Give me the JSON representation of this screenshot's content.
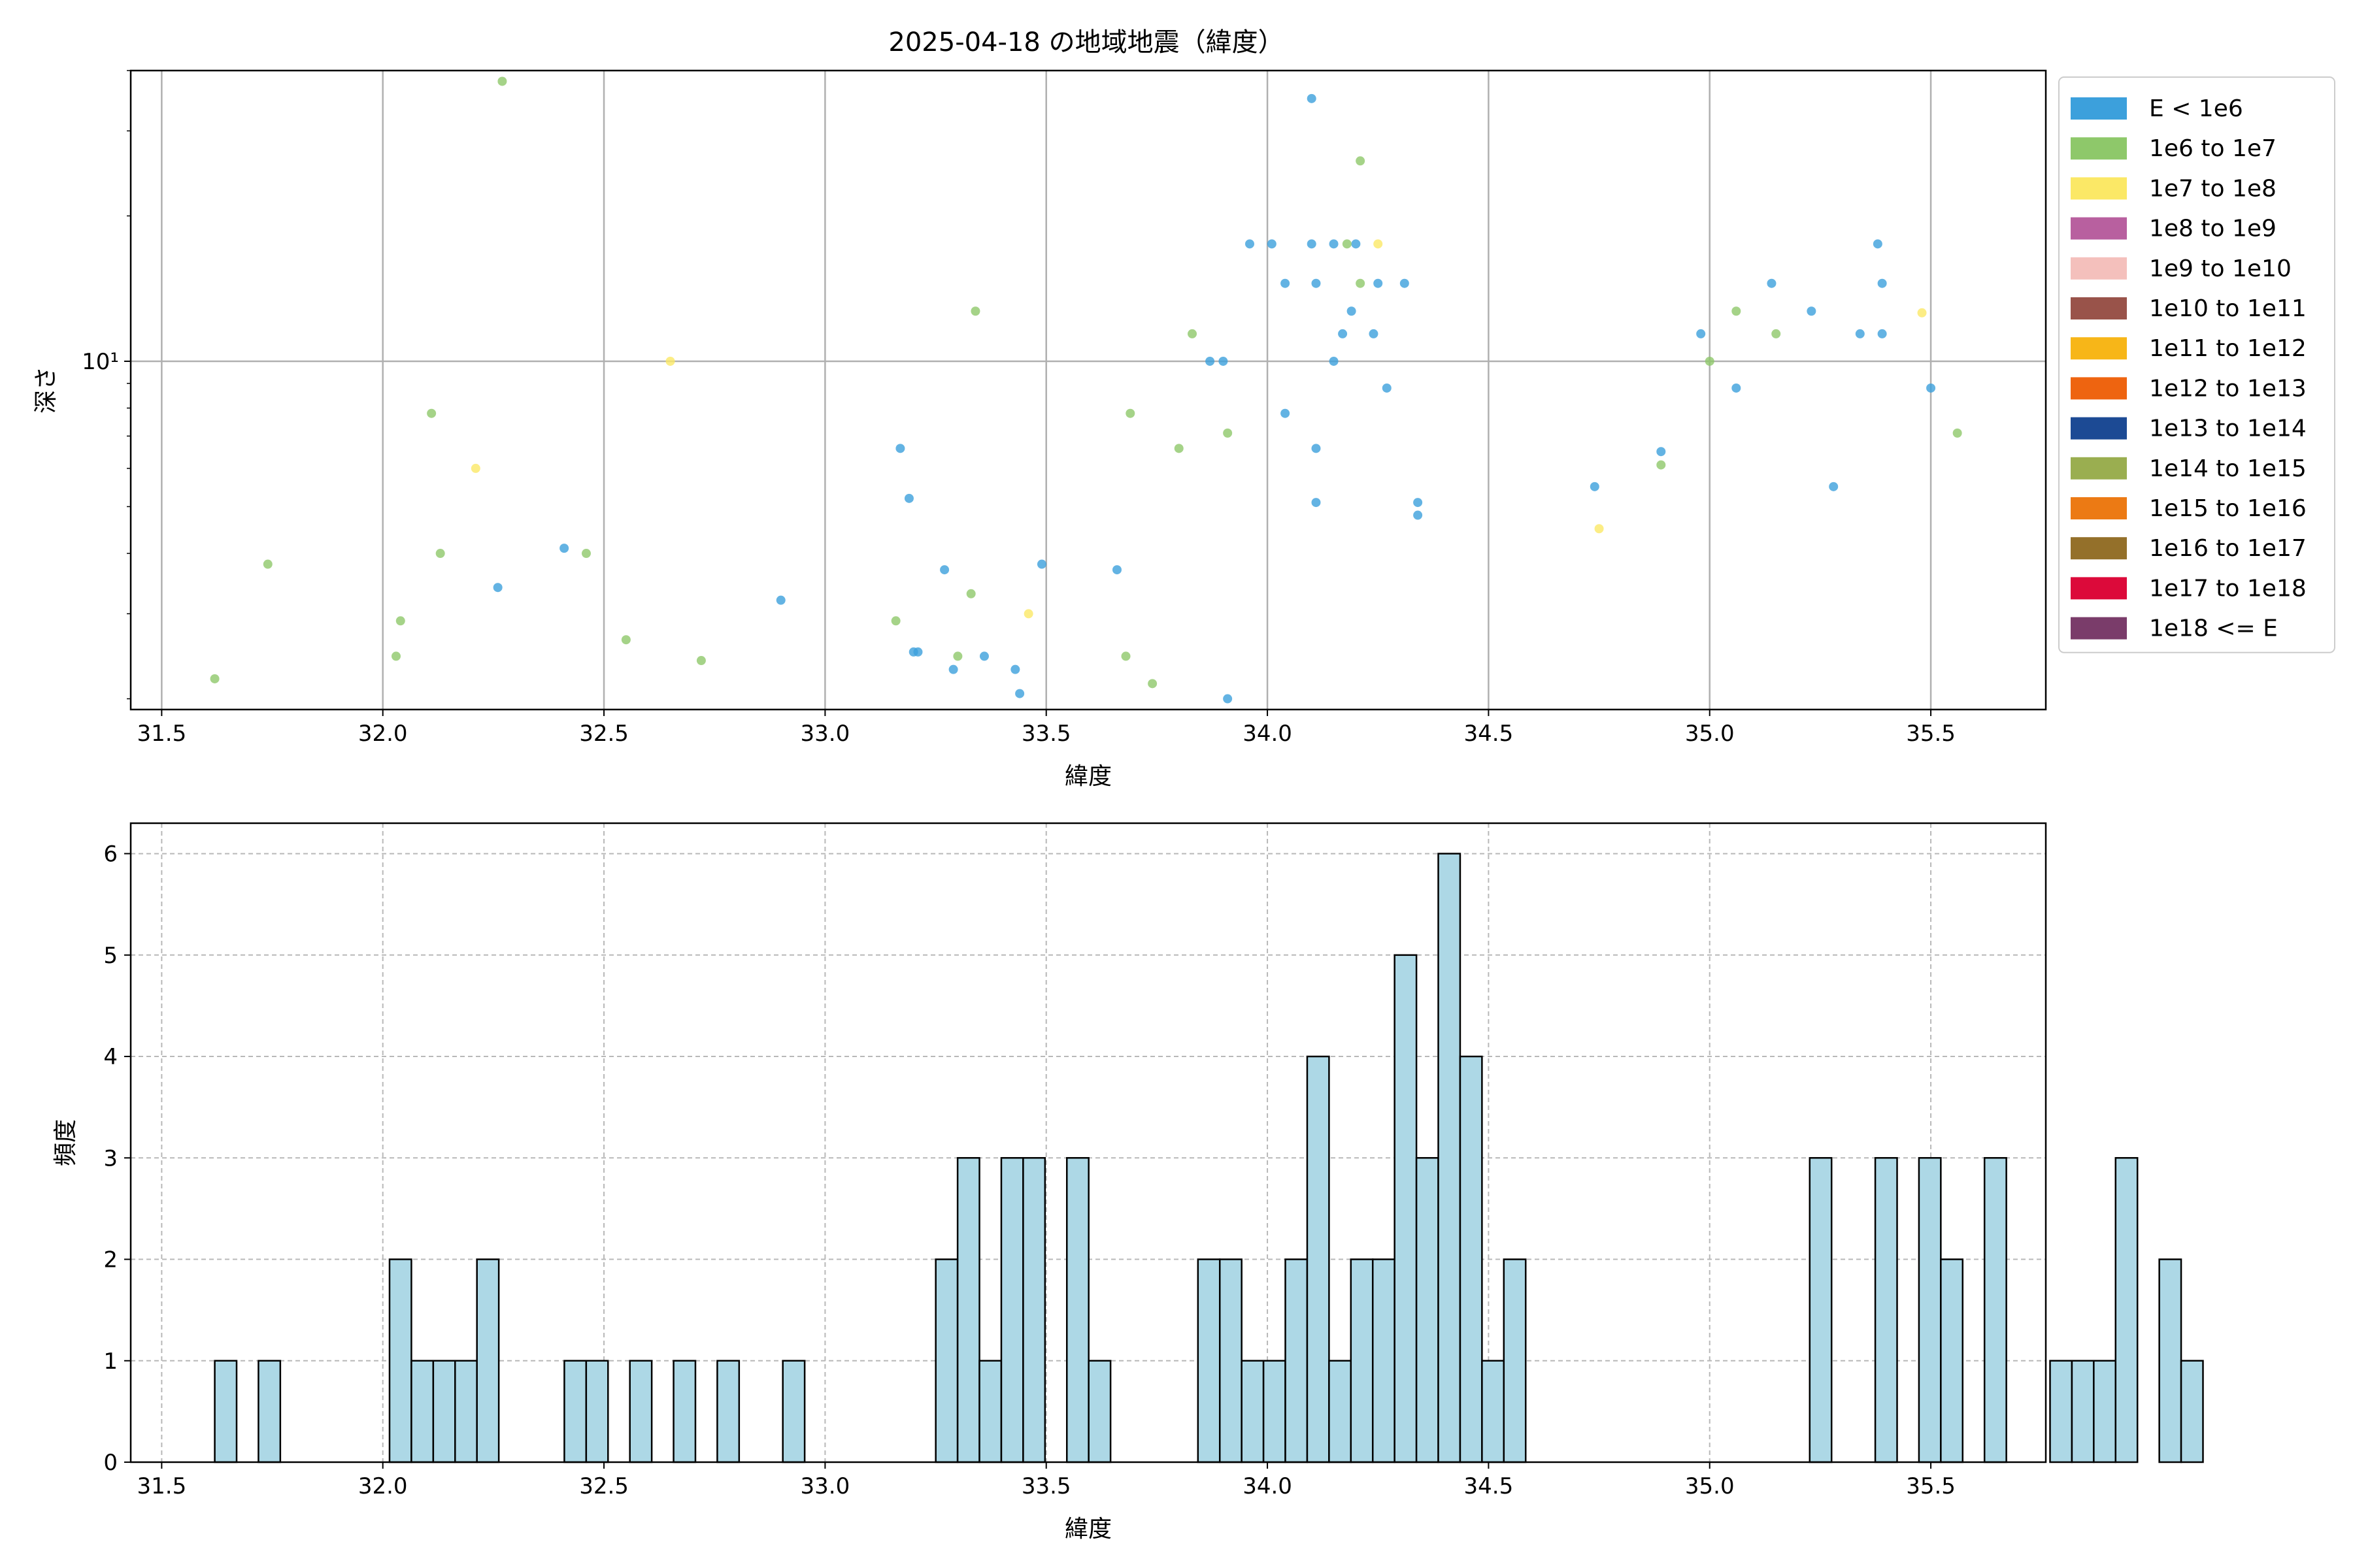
{
  "chart_data": [
    {
      "type": "scatter",
      "title": "2025-04-18 の地域地震（緯度）",
      "xlabel": "緯度",
      "ylabel": "深さ",
      "yscale": "log",
      "xlim": [
        31.43,
        35.76
      ],
      "ylim": [
        1.9,
        40
      ],
      "xticks": [
        31.5,
        32.0,
        32.5,
        33.0,
        33.5,
        34.0,
        34.5,
        35.0,
        35.5
      ],
      "yticks": [
        {
          "value": 10,
          "label": "10¹"
        }
      ],
      "grid": true,
      "legend_position": "outside-right",
      "series": [
        {
          "name": "E < 1e6",
          "color": "#3ca0dc",
          "points": [
            [
              32.26,
              3.4
            ],
            [
              32.41,
              4.1
            ],
            [
              32.9,
              3.2
            ],
            [
              33.17,
              6.6
            ],
            [
              33.19,
              5.2
            ],
            [
              33.2,
              2.5
            ],
            [
              33.21,
              2.5
            ],
            [
              33.27,
              3.7
            ],
            [
              33.29,
              2.3
            ],
            [
              33.36,
              2.45
            ],
            [
              33.43,
              2.3
            ],
            [
              33.44,
              2.05
            ],
            [
              33.49,
              3.8
            ],
            [
              33.66,
              3.7
            ],
            [
              33.87,
              10.0
            ],
            [
              33.9,
              10.0
            ],
            [
              33.91,
              2.0
            ],
            [
              33.96,
              17.5
            ],
            [
              34.01,
              17.5
            ],
            [
              34.04,
              14.5
            ],
            [
              34.04,
              7.8
            ],
            [
              34.1,
              35.0
            ],
            [
              34.1,
              17.5
            ],
            [
              34.11,
              14.5
            ],
            [
              34.11,
              6.6
            ],
            [
              34.11,
              5.1
            ],
            [
              34.15,
              17.5
            ],
            [
              34.15,
              10.0
            ],
            [
              34.17,
              11.4
            ],
            [
              34.19,
              12.7
            ],
            [
              34.2,
              17.5
            ],
            [
              34.24,
              11.4
            ],
            [
              34.25,
              14.5
            ],
            [
              34.27,
              8.8
            ],
            [
              34.31,
              14.5
            ],
            [
              34.34,
              5.1
            ],
            [
              34.34,
              4.8
            ],
            [
              34.74,
              5.5
            ],
            [
              34.89,
              6.5
            ],
            [
              34.98,
              11.4
            ],
            [
              35.06,
              8.8
            ],
            [
              35.14,
              14.5
            ],
            [
              35.23,
              12.7
            ],
            [
              35.28,
              5.5
            ],
            [
              35.34,
              11.4
            ],
            [
              35.38,
              17.5
            ],
            [
              35.39,
              14.5
            ],
            [
              35.39,
              11.4
            ],
            [
              35.5,
              8.8
            ]
          ]
        },
        {
          "name": "1e6 to 1e7",
          "color": "#8ec86a",
          "points": [
            [
              31.62,
              2.2
            ],
            [
              31.74,
              3.8
            ],
            [
              32.03,
              2.45
            ],
            [
              32.04,
              2.9
            ],
            [
              32.11,
              7.8
            ],
            [
              32.13,
              4.0
            ],
            [
              32.27,
              38.0
            ],
            [
              32.46,
              4.0
            ],
            [
              32.55,
              2.65
            ],
            [
              32.72,
              2.4
            ],
            [
              33.16,
              2.9
            ],
            [
              33.3,
              2.45
            ],
            [
              33.33,
              3.3
            ],
            [
              33.34,
              12.7
            ],
            [
              33.68,
              2.45
            ],
            [
              33.69,
              7.8
            ],
            [
              33.74,
              2.15
            ],
            [
              33.8,
              6.6
            ],
            [
              33.83,
              11.4
            ],
            [
              33.91,
              7.1
            ],
            [
              34.18,
              17.5
            ],
            [
              34.21,
              14.5
            ],
            [
              34.21,
              26.0
            ],
            [
              34.89,
              6.1
            ],
            [
              35.0,
              10.0
            ],
            [
              35.06,
              12.7
            ],
            [
              35.15,
              11.4
            ],
            [
              35.56,
              7.1
            ]
          ]
        },
        {
          "name": "1e7 to 1e8",
          "color": "#fbe866",
          "points": [
            [
              32.21,
              6.0
            ],
            [
              32.65,
              10.0
            ],
            [
              33.46,
              3.0
            ],
            [
              34.25,
              17.5
            ],
            [
              34.75,
              4.5
            ],
            [
              35.48,
              12.6
            ]
          ]
        },
        {
          "name": "1e8 to 1e9",
          "color": "#b8609f",
          "points": []
        },
        {
          "name": "1e9 to 1e10",
          "color": "#f4c0bc",
          "points": []
        },
        {
          "name": "1e10 to 1e11",
          "color": "#99534a",
          "points": []
        },
        {
          "name": "1e11 to 1e12",
          "color": "#f7b618",
          "points": []
        },
        {
          "name": "1e12 to 1e13",
          "color": "#ee6410",
          "points": []
        },
        {
          "name": "1e13 to 1e14",
          "color": "#1c4a94",
          "points": []
        },
        {
          "name": "1e14 to 1e15",
          "color": "#9aae50",
          "points": []
        },
        {
          "name": "1e15 to 1e16",
          "color": "#ec7a14",
          "points": []
        },
        {
          "name": "1e16 to 1e17",
          "color": "#94702a",
          "points": []
        },
        {
          "name": "1e17 to 1e18",
          "color": "#dc0a3a",
          "points": []
        },
        {
          "name": "1e18 <= E",
          "color": "#7a3c6a",
          "points": []
        }
      ]
    },
    {
      "type": "bar",
      "title": "",
      "xlabel": "緯度",
      "ylabel": "頻度",
      "xlim": [
        31.43,
        35.76
      ],
      "ylim": [
        0,
        6.3
      ],
      "xticks": [
        31.5,
        32.0,
        32.5,
        33.0,
        33.5,
        34.0,
        34.5,
        35.0,
        35.5
      ],
      "yticks": [
        0,
        1,
        2,
        3,
        4,
        5,
        6
      ],
      "grid": true,
      "bar_color": "#add8e6",
      "bin_start": 31.62,
      "bin_width": 0.0494,
      "counts": [
        1,
        0,
        1,
        0,
        0,
        0,
        0,
        0,
        2,
        1,
        1,
        1,
        2,
        0,
        0,
        0,
        1,
        1,
        0,
        1,
        0,
        1,
        0,
        1,
        0,
        0,
        1,
        0,
        0,
        0,
        0,
        0,
        0,
        2,
        3,
        1,
        3,
        3,
        0,
        3,
        1,
        0,
        0,
        0,
        0,
        2,
        2,
        1,
        1,
        2,
        4,
        1,
        2,
        2,
        5,
        3,
        6,
        4,
        1,
        2,
        0,
        0,
        0,
        0,
        0,
        0,
        0,
        0,
        0,
        0,
        0,
        0,
        0,
        3,
        0,
        0,
        3,
        0,
        3,
        2,
        0,
        3,
        0,
        0,
        1,
        1,
        1,
        3,
        0,
        2,
        1
      ]
    }
  ]
}
